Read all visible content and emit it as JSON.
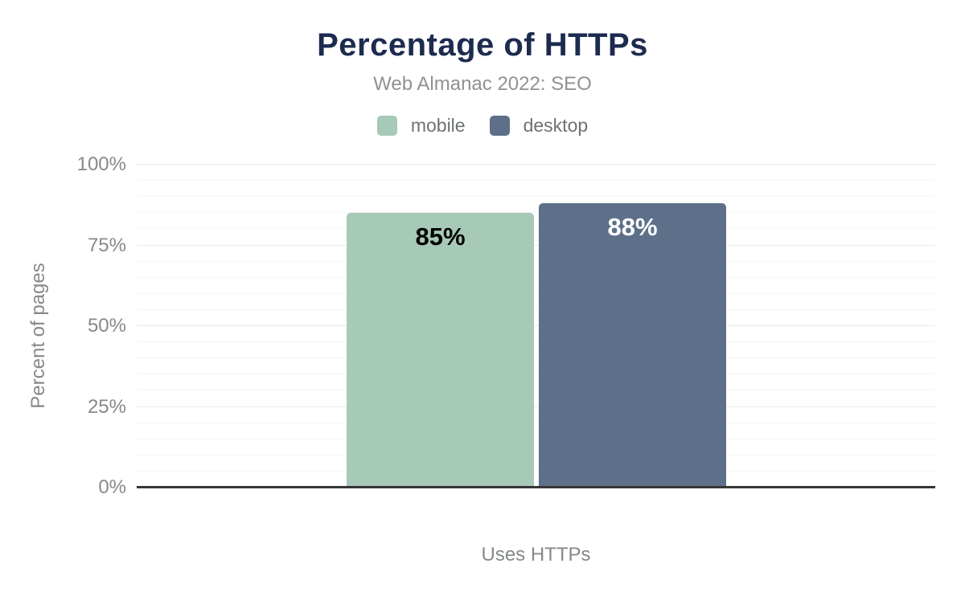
{
  "chart_data": {
    "type": "bar",
    "title": "Percentage of HTTPs",
    "subtitle": "Web Almanac 2022: SEO",
    "categories": [
      "Uses HTTPs"
    ],
    "series": [
      {
        "name": "mobile",
        "values": [
          85
        ],
        "data_labels": [
          "85%"
        ],
        "color": "#a7c9b7",
        "label_color": "#000000"
      },
      {
        "name": "desktop",
        "values": [
          88
        ],
        "data_labels": [
          "88%"
        ],
        "color": "#5e7089",
        "label_color": "#ffffff"
      }
    ],
    "xlabel": "Uses HTTPs",
    "ylabel": "Percent of pages",
    "ylim": [
      0,
      100
    ],
    "yticks": [
      {
        "value": 0,
        "label": "0%"
      },
      {
        "value": 25,
        "label": "25%"
      },
      {
        "value": 50,
        "label": "50%"
      },
      {
        "value": 75,
        "label": "75%"
      },
      {
        "value": 100,
        "label": "100%"
      }
    ],
    "grid": {
      "show": true,
      "minor_step": 5,
      "major_step": 25
    },
    "legend_position": "top"
  },
  "legend": {
    "items": [
      {
        "label": "mobile",
        "color": "#a7c9b7"
      },
      {
        "label": "desktop",
        "color": "#5e7089"
      }
    ]
  },
  "colors": {
    "background": "#ffffff",
    "title_text": "#1d2b4f",
    "subtitle_text": "#8f9193",
    "legend_text": "#6e7275",
    "axis_text": "#85898c",
    "axis_line": "#373737",
    "grid_major": "#e9eaea",
    "grid_minor": "#f5f6f6"
  }
}
